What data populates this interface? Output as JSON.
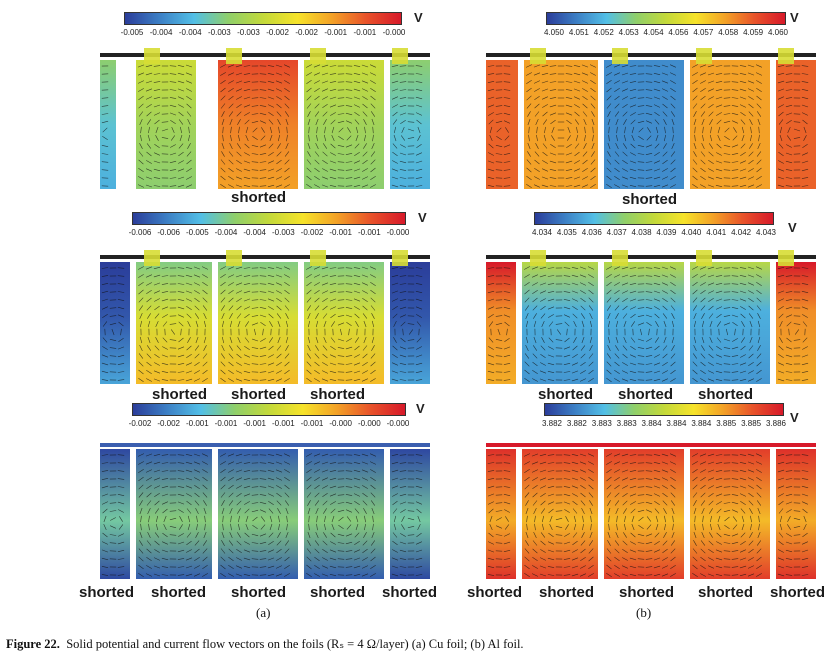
{
  "figure": {
    "caption_label": "Figure 22.",
    "caption_text": "Solid potential and current flow vectors on the foils (Rₛ = 4 Ω/layer) (a) Cu foil; (b) Al foil.",
    "sublabel_a": "(a)",
    "sublabel_b": "(b)",
    "shorted_label": "shorted"
  },
  "colors": {
    "jet": [
      "#2b3d9a",
      "#3c7fc5",
      "#52bfe6",
      "#8fcf6a",
      "#c3d93a",
      "#f6e32a",
      "#f3a127",
      "#e8522a",
      "#d7192a"
    ]
  },
  "colorbars": {
    "cu_top": {
      "unit": "V",
      "ticks": [
        "-0.005",
        "-0.004",
        "-0.004",
        "-0.003",
        "-0.003",
        "-0.002",
        "-0.002",
        "-0.001",
        "-0.001",
        "-0.000"
      ]
    },
    "cu_mid": {
      "unit": "V",
      "ticks": [
        "-0.006",
        "-0.006",
        "-0.005",
        "-0.004",
        "-0.004",
        "-0.003",
        "-0.002",
        "-0.001",
        "-0.001",
        "-0.000"
      ]
    },
    "cu_bot": {
      "unit": "V",
      "ticks": [
        "-0.002",
        "-0.002",
        "-0.001",
        "-0.001",
        "-0.001",
        "-0.001",
        "-0.001",
        "-0.000",
        "-0.000",
        "-0.000"
      ]
    },
    "al_top": {
      "unit": "V",
      "ticks": [
        "4.050",
        "4.051",
        "4.052",
        "4.053",
        "4.054",
        "4.056",
        "4.057",
        "4.058",
        "4.059",
        "4.060"
      ]
    },
    "al_mid": {
      "unit": "V",
      "ticks": [
        "4.034",
        "4.035",
        "4.036",
        "4.037",
        "4.038",
        "4.039",
        "4.040",
        "4.041",
        "4.042",
        "4.043"
      ]
    },
    "al_bot": {
      "unit": "V",
      "ticks": [
        "3.882",
        "3.882",
        "3.883",
        "3.883",
        "3.884",
        "3.884",
        "3.884",
        "3.885",
        "3.885",
        "3.886"
      ]
    }
  }
}
